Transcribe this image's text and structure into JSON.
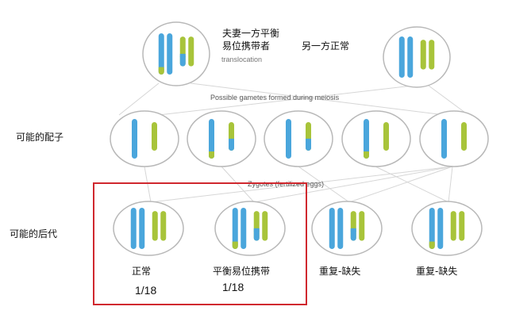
{
  "colors": {
    "blue": "#4aa6dc",
    "green": "#a8c43a",
    "outline": "#b8b8b8",
    "highlight": "#d0282e"
  },
  "parents": {
    "carrier_label_line1": "夫妻一方平衡",
    "carrier_label_line2": "易位携带者",
    "carrier_sublabel": "translocation",
    "normal_label": "另一方正常",
    "carrier_chromosomes": [
      "B/g",
      "B",
      "G/b",
      "G"
    ],
    "normal_chromosomes": [
      "B",
      "B",
      "G",
      "G"
    ]
  },
  "gametes": {
    "row_label": "可能的配子",
    "caption": "Possible gametes formed during meiosis",
    "cells": [
      {
        "chromosomes": [
          "B",
          "G"
        ]
      },
      {
        "chromosomes": [
          "B/g",
          "G/b"
        ]
      },
      {
        "chromosomes": [
          "B",
          "G/b"
        ]
      },
      {
        "chromosomes": [
          "B/g",
          "G"
        ]
      },
      {
        "chromosomes": [
          "B",
          "G"
        ]
      }
    ]
  },
  "zygotes": {
    "row_label": "可能的后代",
    "caption": "Zygotes (fertilized eggs)",
    "cells": [
      {
        "chromosomes": [
          "B",
          "B",
          "G",
          "G"
        ],
        "label": "正常",
        "probability": "1/18"
      },
      {
        "chromosomes": [
          "B/g",
          "B",
          "G/b",
          "G"
        ],
        "label": "平衡易位携带",
        "probability": "1/18"
      },
      {
        "chromosomes": [
          "B",
          "B",
          "G/b",
          "G"
        ],
        "label": "重复-缺失"
      },
      {
        "chromosomes": [
          "B/g",
          "B",
          "G",
          "G"
        ],
        "label": "重复-缺失"
      }
    ]
  }
}
